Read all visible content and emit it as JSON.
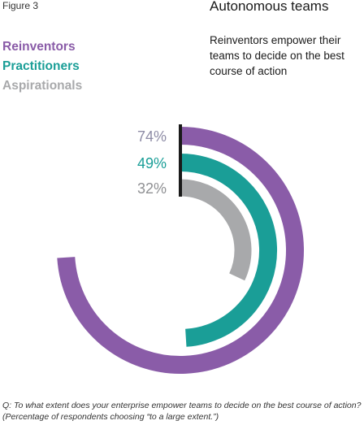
{
  "figure_label": "Figure 3",
  "title": "Autonomous teams",
  "subtitle": "Reinventors empower their teams to decide on the best course of action",
  "footnote": "Q: To what extent does your enterprise empower teams to decide on the best course of action? (Percentage of respondents choosing “to a large extent.”)",
  "colors": {
    "reinventors": "#8a5ca8",
    "practitioners": "#1a9e97",
    "aspirationals": "#a8a9ab",
    "baseline": "#1a1a1a"
  },
  "chart_data": {
    "type": "radial-bar",
    "title": "Autonomous teams",
    "series": [
      {
        "name": "Reinventors",
        "value": 74,
        "label": "74%",
        "color": "#8a5ca8"
      },
      {
        "name": "Practitioners",
        "value": 49,
        "label": "49%",
        "color": "#1a9e97"
      },
      {
        "name": "Aspirationals",
        "value": 32,
        "label": "32%",
        "color": "#a8a9ab"
      }
    ],
    "max": 100,
    "legend_position": "top-left"
  }
}
